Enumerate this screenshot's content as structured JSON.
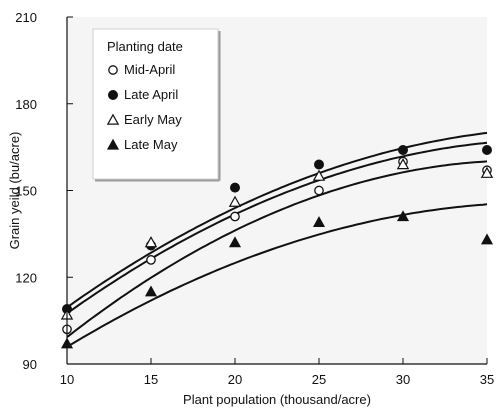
{
  "chart_data": {
    "type": "scatter",
    "xlabel": "Plant population (thousand/acre)",
    "ylabel": "Grain yeild (bu/acre)",
    "xlim": [
      10,
      35
    ],
    "ylim": [
      90,
      210
    ],
    "xticks": [
      10,
      15,
      20,
      25,
      30,
      35
    ],
    "yticks": [
      90,
      120,
      150,
      180,
      210
    ],
    "grid": false,
    "legend": {
      "title": "Planting date",
      "placement": "top-left"
    },
    "x": [
      10,
      15,
      20,
      25,
      30,
      35
    ],
    "series": [
      {
        "name": "Mid-April",
        "marker": "circle-open",
        "values": [
          102,
          126,
          141,
          150,
          160,
          157
        ],
        "fit": [
          99.3,
          4.525,
          -0.0838
        ]
      },
      {
        "name": "Late April",
        "marker": "circle-filled",
        "values": [
          109,
          131,
          151,
          159,
          164,
          164
        ],
        "fit": [
          109.6,
          4.115,
          -0.0681
        ]
      },
      {
        "name": "Early May",
        "marker": "triangle-open",
        "values": [
          107,
          132,
          146,
          155,
          159,
          156
        ],
        "fit": [
          107.5,
          4.136,
          -0.071
        ]
      },
      {
        "name": "Late May",
        "marker": "triangle-filled",
        "values": [
          97,
          115,
          132,
          139,
          141,
          133
        ],
        "fit": [
          95.9,
          3.525,
          -0.0621
        ]
      }
    ]
  }
}
